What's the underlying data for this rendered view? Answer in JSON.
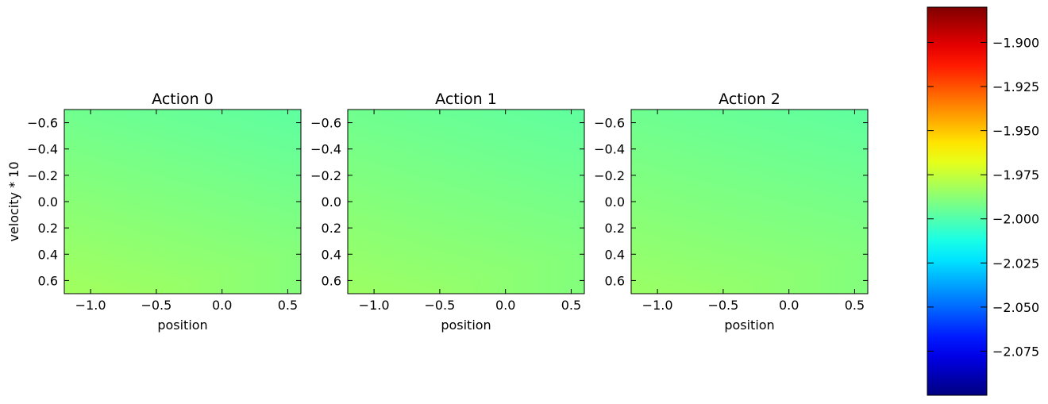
{
  "chart_data": {
    "type": "heatmap",
    "panels": [
      {
        "title": "Action 0",
        "xlabel": "position",
        "ylabel": "velocity * 10",
        "xlim": [
          -1.2,
          0.6
        ],
        "ylim": [
          0.7,
          -0.7
        ],
        "x_ticks": [
          -1.0,
          -0.5,
          0.0,
          0.5
        ],
        "x_tick_labels": [
          "−1.0",
          "−0.5",
          "0.0",
          "0.5"
        ],
        "y_ticks": [
          -0.6,
          -0.4,
          -0.2,
          0.0,
          0.2,
          0.4,
          0.6
        ],
        "y_tick_labels": [
          "−0.6",
          "−0.4",
          "−0.2",
          "0.0",
          "0.2",
          "0.4",
          "0.6"
        ],
        "value_corners": {
          "top_left": -1.999,
          "top_right": -2.002,
          "bottom_left": -1.98,
          "bottom_right": -1.984
        }
      },
      {
        "title": "Action 1",
        "xlabel": "position",
        "ylabel": "",
        "xlim": [
          -1.2,
          0.6
        ],
        "ylim": [
          0.7,
          -0.7
        ],
        "x_ticks": [
          -1.0,
          -0.5,
          0.0,
          0.5
        ],
        "x_tick_labels": [
          "−1.0",
          "−0.5",
          "0.0",
          "0.5"
        ],
        "y_ticks": [
          -0.6,
          -0.4,
          -0.2,
          0.0,
          0.2,
          0.4,
          0.6
        ],
        "y_tick_labels": [
          "−0.6",
          "−0.4",
          "−0.2",
          "0.0",
          "0.2",
          "0.4",
          "0.6"
        ],
        "value_corners": {
          "top_left": -1.999,
          "top_right": -2.001,
          "bottom_left": -1.981,
          "bottom_right": -1.986
        }
      },
      {
        "title": "Action 2",
        "xlabel": "position",
        "ylabel": "",
        "xlim": [
          -1.2,
          0.6
        ],
        "ylim": [
          0.7,
          -0.7
        ],
        "x_ticks": [
          -1.0,
          -0.5,
          0.0,
          0.5
        ],
        "x_tick_labels": [
          "−1.0",
          "−0.5",
          "0.0",
          "0.5"
        ],
        "y_ticks": [
          -0.6,
          -0.4,
          -0.2,
          0.0,
          0.2,
          0.4,
          0.6
        ],
        "y_tick_labels": [
          "−0.6",
          "−0.4",
          "−0.2",
          "0.0",
          "0.2",
          "0.4",
          "0.6"
        ],
        "value_corners": {
          "top_left": -1.999,
          "top_right": -2.001,
          "bottom_left": -1.982,
          "bottom_right": -1.985
        }
      }
    ],
    "colorbar": {
      "colormap": "jet",
      "range": [
        -2.1,
        -1.88
      ],
      "ticks": [
        -1.9,
        -1.925,
        -1.95,
        -1.975,
        -2.0,
        -2.025,
        -2.05,
        -2.075
      ],
      "tick_labels": [
        "−1.900",
        "−1.925",
        "−1.950",
        "−1.975",
        "−2.000",
        "−2.025",
        "−2.050",
        "−2.075"
      ]
    }
  }
}
